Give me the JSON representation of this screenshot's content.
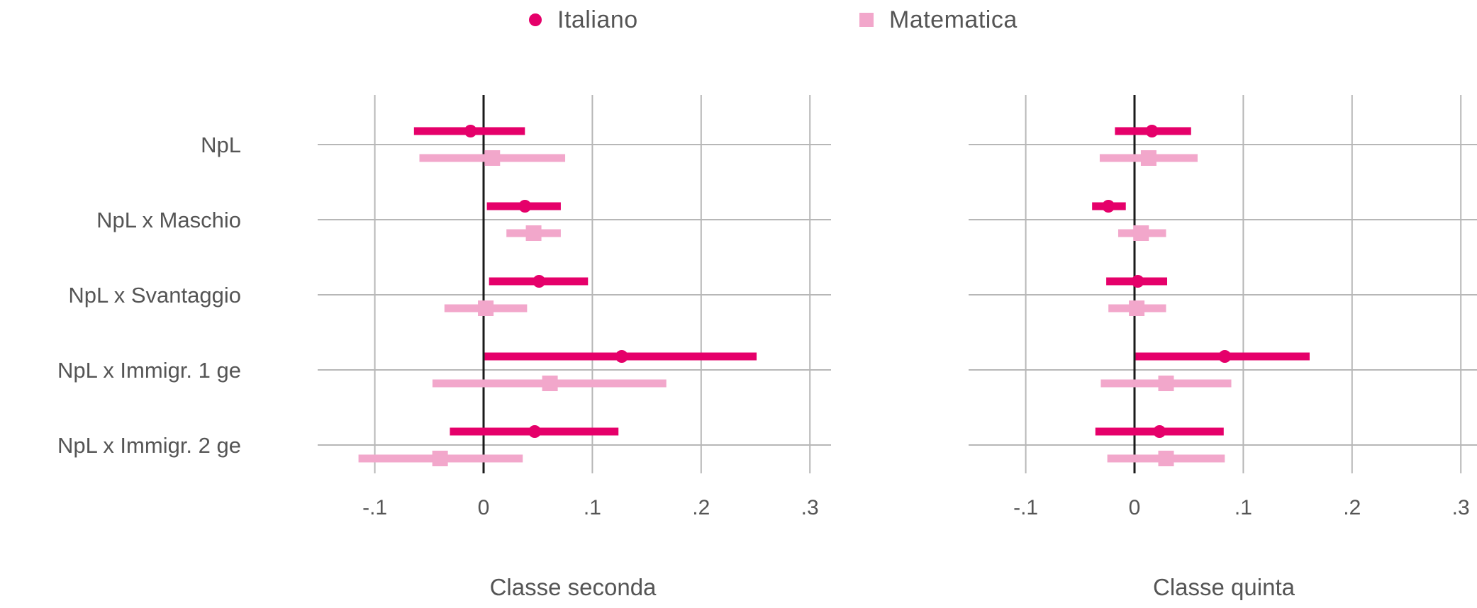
{
  "legend": [
    {
      "label": "Italiano",
      "color": "#e5006a",
      "marker": "circle"
    },
    {
      "label": "Matematica",
      "color": "#f2a7cb",
      "marker": "square"
    }
  ],
  "chart_data": {
    "type": "scatter",
    "subtype": "coefficient-plot-with-confidence-intervals",
    "orientation": "horizontal",
    "rows": [
      "NpL",
      "NpL x Maschio",
      "NpL x Svantaggio",
      "NpL x Immigr. 1 ge",
      "NpL x Immigr. 2 ge"
    ],
    "xlim": [
      -0.15,
      0.32
    ],
    "xticks": [
      -0.1,
      0,
      0.1,
      0.2,
      0.3
    ],
    "xtick_labels": [
      "-.1",
      "0",
      ".1",
      ".2",
      ".3"
    ],
    "zero_line": true,
    "grid": true,
    "legend_position": "top-center",
    "colors": {
      "Italiano": "#e5006a",
      "Matematica": "#f2a7cb"
    },
    "panels": [
      {
        "xlabel": "Classe seconda",
        "series": [
          {
            "name": "Italiano",
            "points": [
              {
                "est": -0.012,
                "lo": -0.064,
                "hi": 0.038
              },
              {
                "est": 0.038,
                "lo": 0.003,
                "hi": 0.071
              },
              {
                "est": 0.051,
                "lo": 0.005,
                "hi": 0.096
              },
              {
                "est": 0.127,
                "lo": 0.001,
                "hi": 0.251
              },
              {
                "est": 0.047,
                "lo": -0.031,
                "hi": 0.124
              }
            ]
          },
          {
            "name": "Matematica",
            "points": [
              {
                "est": 0.008,
                "lo": -0.059,
                "hi": 0.075
              },
              {
                "est": 0.046,
                "lo": 0.021,
                "hi": 0.071
              },
              {
                "est": 0.002,
                "lo": -0.036,
                "hi": 0.04
              },
              {
                "est": 0.061,
                "lo": -0.047,
                "hi": 0.168
              },
              {
                "est": -0.04,
                "lo": -0.115,
                "hi": 0.036
              }
            ]
          }
        ]
      },
      {
        "xlabel": "Classe quinta",
        "series": [
          {
            "name": "Italiano",
            "points": [
              {
                "est": 0.016,
                "lo": -0.018,
                "hi": 0.052
              },
              {
                "est": -0.024,
                "lo": -0.039,
                "hi": -0.008
              },
              {
                "est": 0.003,
                "lo": -0.026,
                "hi": 0.03
              },
              {
                "est": 0.083,
                "lo": 0.001,
                "hi": 0.161
              },
              {
                "est": 0.023,
                "lo": -0.036,
                "hi": 0.082
              }
            ]
          },
          {
            "name": "Matematica",
            "points": [
              {
                "est": 0.013,
                "lo": -0.032,
                "hi": 0.058
              },
              {
                "est": 0.006,
                "lo": -0.015,
                "hi": 0.029
              },
              {
                "est": 0.002,
                "lo": -0.024,
                "hi": 0.029
              },
              {
                "est": 0.029,
                "lo": -0.031,
                "hi": 0.089
              },
              {
                "est": 0.029,
                "lo": -0.025,
                "hi": 0.083
              }
            ]
          }
        ]
      }
    ]
  }
}
